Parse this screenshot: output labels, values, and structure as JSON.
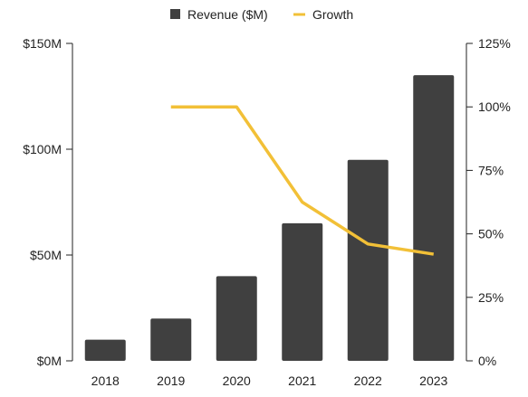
{
  "chart_data": {
    "type": "bar",
    "categories": [
      "2018",
      "2019",
      "2020",
      "2021",
      "2022",
      "2023"
    ],
    "series": [
      {
        "name": "Revenue ($M)",
        "type": "bar",
        "axis": "left",
        "values": [
          10,
          20,
          40,
          65,
          95,
          135
        ],
        "color": "#404040"
      },
      {
        "name": "Growth",
        "type": "line",
        "axis": "right",
        "values": [
          null,
          100,
          100,
          62.5,
          46,
          42
        ],
        "color": "#f2c037"
      }
    ],
    "left_axis": {
      "range": [
        0,
        150
      ],
      "ticks": [
        0,
        50,
        100,
        150
      ],
      "tick_labels": [
        "$0M",
        "$50M",
        "$100M",
        "$150M"
      ]
    },
    "right_axis": {
      "range": [
        0,
        125
      ],
      "ticks": [
        0,
        25,
        50,
        75,
        100,
        125
      ],
      "tick_labels": [
        "0%",
        "25%",
        "50%",
        "75%",
        "100%",
        "125%"
      ]
    },
    "legend": {
      "position": "top-center",
      "items": [
        {
          "label": "Revenue ($M)",
          "color": "#404040",
          "marker": "square"
        },
        {
          "label": "Growth",
          "color": "#f2c037",
          "marker": "line"
        }
      ]
    },
    "title": "",
    "xlabel": "",
    "ylabel": "",
    "grid": false
  }
}
